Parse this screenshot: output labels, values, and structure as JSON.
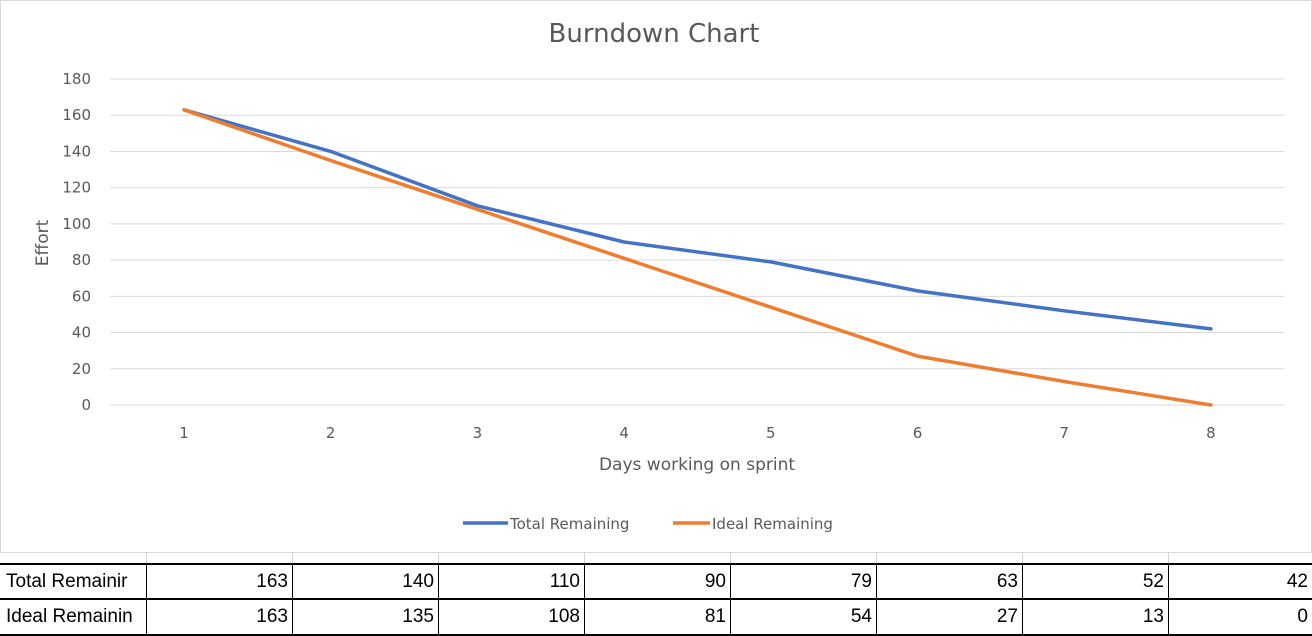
{
  "chart_data": {
    "type": "line",
    "title": "Burndown Chart",
    "xlabel": "Days working on sprint",
    "ylabel": "Effort",
    "x": [
      1,
      2,
      3,
      4,
      5,
      6,
      7,
      8
    ],
    "ylim": [
      0,
      180
    ],
    "yticks": [
      0,
      20,
      40,
      60,
      80,
      100,
      120,
      140,
      160,
      180
    ],
    "grid": true,
    "legend_position": "bottom",
    "series": [
      {
        "name": "Total Remaining",
        "values": [
          163,
          140,
          110,
          90,
          79,
          63,
          52,
          42
        ],
        "color": "#4472c4"
      },
      {
        "name": "Ideal Remaining",
        "values": [
          163,
          135,
          108,
          81,
          54,
          27,
          13,
          0
        ],
        "color": "#ed7d31"
      }
    ]
  },
  "table": {
    "rows": [
      {
        "label": "Total Remainir",
        "values": [
          "163",
          "140",
          "110",
          "90",
          "79",
          "63",
          "52",
          "42"
        ]
      },
      {
        "label": "Ideal Remainin",
        "values": [
          "163",
          "135",
          "108",
          "81",
          "54",
          "27",
          "13",
          "0"
        ]
      }
    ]
  }
}
